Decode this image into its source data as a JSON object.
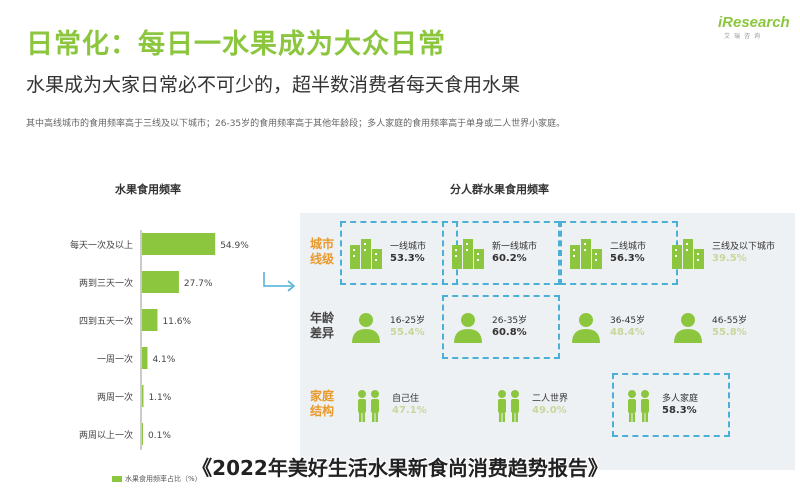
{
  "header": {
    "headline": "日常化：每日一水果成为大众日常",
    "subhead": "水果成为大家日常必不可少的，超半数消费者每天食用水果",
    "note": "其中高线城市的食用频率高于三线及以下城市；26-35岁的食用频率高于其他年龄段；多人家庭的食用频率高于单身或二人世界小家庭。"
  },
  "logo": {
    "brand": "iResearch",
    "cn": "艾瑞咨询"
  },
  "colors": {
    "accent": "#8cc63f",
    "orange": "#e89a2c",
    "highlight": "#4ab0d8",
    "panel": "#eef1f4"
  },
  "chart_data": [
    {
      "type": "bar",
      "orientation": "horizontal",
      "title": "水果食用频率",
      "categories": [
        "每天一次及以上",
        "两到三天一次",
        "四到五天一次",
        "一周一次",
        "两周一次",
        "两周以上一次"
      ],
      "values": [
        54.9,
        27.7,
        11.6,
        4.1,
        1.1,
        0.1
      ],
      "value_labels": [
        "54.9%",
        "27.7%",
        "11.6%",
        "4.1%",
        "1.1%",
        "0.1%"
      ],
      "legend": "水果食用频率占比（%）",
      "xlim": [
        0,
        60
      ]
    },
    {
      "type": "table",
      "title": "分人群水果食用频率",
      "rows": [
        {
          "label": "城市线级",
          "label_color": "orange",
          "icon": "building-icon",
          "cells": [
            {
              "name": "一线城市",
              "value": "53.3%",
              "highlight": true
            },
            {
              "name": "新一线城市",
              "value": "60.2%",
              "highlight": true
            },
            {
              "name": "二线城市",
              "value": "56.3%",
              "highlight": true
            },
            {
              "name": "三线及以下城市",
              "value": "39.5%",
              "highlight": false
            }
          ]
        },
        {
          "label": "年龄差异",
          "label_color": "dark",
          "icon": "person-icon",
          "cells": [
            {
              "name": "16-25岁",
              "value": "55.4%",
              "highlight": false
            },
            {
              "name": "26-35岁",
              "value": "60.8%",
              "highlight": true
            },
            {
              "name": "36-45岁",
              "value": "48.4%",
              "highlight": false
            },
            {
              "name": "46-55岁",
              "value": "55.8%",
              "highlight": false
            }
          ]
        },
        {
          "label": "家庭结构",
          "label_color": "orange",
          "icon": "family-icon",
          "cells": [
            {
              "name": "自己住",
              "value": "47.1%",
              "highlight": false
            },
            {
              "name": "二人世界",
              "value": "49.0%",
              "highlight": false
            },
            {
              "name": "多人家庭",
              "value": "58.3%",
              "highlight": true
            }
          ]
        }
      ]
    }
  ],
  "caption": "《2022年美好生活水果新食尚消费趋势报告》"
}
